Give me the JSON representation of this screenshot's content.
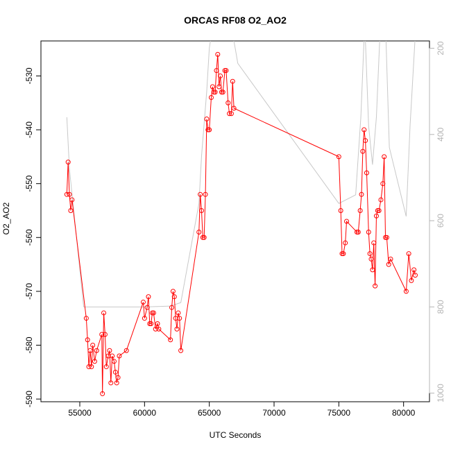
{
  "chart_data": {
    "type": "line",
    "title": "ORCAS RF08 O2_AO2",
    "xlabel": "UTC Seconds",
    "ylabel": "O2_AO2",
    "xlim": [
      52000,
      82000
    ],
    "ylim": [
      -590.5,
      -523.5
    ],
    "xticks": [
      55000,
      60000,
      65000,
      70000,
      75000,
      80000
    ],
    "xtick_labels": [
      "55000",
      "60000",
      "65000",
      "70000",
      "75000",
      "80000"
    ],
    "yticks": [
      -590,
      -580,
      -570,
      -560,
      -550,
      -540,
      -530
    ],
    "ytick_labels": [
      "-590",
      "-580",
      "-570",
      "-560",
      "-550",
      "-540",
      "-530"
    ],
    "y2lim": [
      1020,
      183
    ],
    "y2ticks": [
      200,
      400,
      600,
      800,
      1000
    ],
    "y2tick_labels": [
      "200",
      "400",
      "600",
      "800",
      "1000"
    ],
    "grid": false,
    "series": [
      {
        "color": "#ff0000",
        "marker": "open-circle",
        "axis": "left",
        "points": [
          [
            54000,
            -552
          ],
          [
            54100,
            -546
          ],
          [
            54200,
            -552
          ],
          [
            54300,
            -555
          ],
          [
            54400,
            -553
          ],
          [
            55500,
            -575
          ],
          [
            55600,
            -579
          ],
          [
            55700,
            -584
          ],
          [
            55800,
            -581
          ],
          [
            55900,
            -584
          ],
          [
            56000,
            -580
          ],
          [
            56150,
            -583
          ],
          [
            56300,
            -581
          ],
          [
            56700,
            -578
          ],
          [
            56750,
            -589
          ],
          [
            56850,
            -574
          ],
          [
            56950,
            -578
          ],
          [
            57050,
            -584
          ],
          [
            57200,
            -582
          ],
          [
            57300,
            -581
          ],
          [
            57400,
            -587
          ],
          [
            57500,
            -582
          ],
          [
            57650,
            -583
          ],
          [
            57750,
            -585
          ],
          [
            57850,
            -587
          ],
          [
            57950,
            -586
          ],
          [
            58050,
            -582
          ],
          [
            58600,
            -581
          ],
          [
            59900,
            -572
          ],
          [
            60000,
            -575
          ],
          [
            60200,
            -573
          ],
          [
            60300,
            -571
          ],
          [
            60400,
            -576
          ],
          [
            60500,
            -576
          ],
          [
            60600,
            -574
          ],
          [
            60700,
            -574
          ],
          [
            60850,
            -577
          ],
          [
            61000,
            -576
          ],
          [
            61100,
            -577
          ],
          [
            62000,
            -579
          ],
          [
            62100,
            -573
          ],
          [
            62200,
            -570
          ],
          [
            62300,
            -571
          ],
          [
            62400,
            -575
          ],
          [
            62500,
            -577
          ],
          [
            62600,
            -574
          ],
          [
            62700,
            -575
          ],
          [
            62800,
            -581
          ],
          [
            64200,
            -559
          ],
          [
            64300,
            -552
          ],
          [
            64400,
            -555
          ],
          [
            64500,
            -560
          ],
          [
            64600,
            -560
          ],
          [
            64700,
            -552
          ],
          [
            64800,
            -538
          ],
          [
            64900,
            -540
          ],
          [
            65000,
            -540
          ],
          [
            65150,
            -534
          ],
          [
            65250,
            -532
          ],
          [
            65350,
            -533
          ],
          [
            65450,
            -533
          ],
          [
            65550,
            -529
          ],
          [
            65650,
            -526
          ],
          [
            65750,
            -532
          ],
          [
            65850,
            -530
          ],
          [
            65950,
            -533
          ],
          [
            66050,
            -533
          ],
          [
            66200,
            -529
          ],
          [
            66300,
            -529
          ],
          [
            66450,
            -535
          ],
          [
            66550,
            -537
          ],
          [
            66700,
            -537
          ],
          [
            66800,
            -531
          ],
          [
            66900,
            -536
          ],
          [
            75000,
            -545
          ],
          [
            75150,
            -555
          ],
          [
            75250,
            -563
          ],
          [
            75350,
            -563
          ],
          [
            75500,
            -561
          ],
          [
            75600,
            -557
          ],
          [
            76400,
            -559
          ],
          [
            76500,
            -559
          ],
          [
            76650,
            -555
          ],
          [
            76750,
            -552
          ],
          [
            76850,
            -544
          ],
          [
            76950,
            -540
          ],
          [
            77050,
            -542
          ],
          [
            77150,
            -548
          ],
          [
            77300,
            -559
          ],
          [
            77400,
            -563
          ],
          [
            77500,
            -564
          ],
          [
            77600,
            -566
          ],
          [
            77700,
            -561
          ],
          [
            77800,
            -569
          ],
          [
            77900,
            -556
          ],
          [
            78000,
            -555
          ],
          [
            78100,
            -555
          ],
          [
            78250,
            -553
          ],
          [
            78400,
            -550
          ],
          [
            78500,
            -545
          ],
          [
            78600,
            -560
          ],
          [
            78700,
            -560
          ],
          [
            78850,
            -565
          ],
          [
            79000,
            -564
          ],
          [
            80200,
            -570
          ],
          [
            80400,
            -563
          ],
          [
            80600,
            -568
          ],
          [
            80800,
            -566
          ],
          [
            80900,
            -567
          ]
        ]
      },
      {
        "color": "#c8c8c8",
        "marker": "none",
        "axis": "right",
        "points": [
          [
            54000,
            360
          ],
          [
            54200,
            480
          ],
          [
            55300,
            800
          ],
          [
            56000,
            800
          ],
          [
            58000,
            800
          ],
          [
            60000,
            800
          ],
          [
            62000,
            798
          ],
          [
            62800,
            790
          ],
          [
            64200,
            560
          ],
          [
            64400,
            450
          ],
          [
            64800,
            300
          ],
          [
            65000,
            200
          ],
          [
            65500,
            100
          ],
          [
            66000,
            150
          ],
          [
            66300,
            175
          ],
          [
            66500,
            120
          ],
          [
            67000,
            200
          ],
          [
            67200,
            235
          ],
          [
            75000,
            560
          ],
          [
            76300,
            540
          ],
          [
            76700,
            360
          ],
          [
            77000,
            140
          ],
          [
            77300,
            380
          ],
          [
            77600,
            470
          ],
          [
            77900,
            360
          ],
          [
            78200,
            150
          ],
          [
            78600,
            140
          ],
          [
            78900,
            430
          ],
          [
            80200,
            590
          ],
          [
            80500,
            380
          ],
          [
            80900,
            170
          ]
        ]
      }
    ]
  }
}
